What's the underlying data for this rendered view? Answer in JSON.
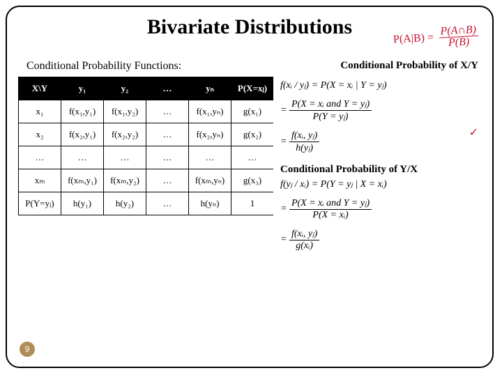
{
  "title": "Bivariate Distributions",
  "hand_annotation": {
    "lhs": "P(A|B) =",
    "num": "P(A∩B)",
    "den": "P(B)"
  },
  "subhead_left": "Conditional Probability Functions:",
  "subhead_right": "Conditional Probability of X/Y",
  "table": {
    "headers": [
      "X\\Y",
      "y₁",
      "y₂",
      "…",
      "yₙ",
      "P(X=xⱼ)"
    ],
    "rows": [
      [
        "x₁",
        "f(x₁,y₁)",
        "f(x₁,y₂)",
        "…",
        "f(x₁,yₙ)",
        "g(x₁)"
      ],
      [
        "x₂",
        "f(x₂,y₁)",
        "f(x₂,y₂)",
        "…",
        "f(x₂,yₙ)",
        "g(x₂)"
      ],
      [
        "…",
        "…",
        "…",
        "…",
        "…",
        "…"
      ],
      [
        "xₘ",
        "f(xₘ,y₁)",
        "f(xₘ,y₂)",
        "…",
        "f(xₘ,yₙ)",
        "g(x₃)"
      ],
      [
        "P(Y=yⱼ)",
        "h(y₁)",
        "h(y₂)",
        "…",
        "h(yₙ)",
        "1"
      ]
    ]
  },
  "eq_xy": {
    "line1_lhs": "f(xᵢ / yⱼ) = P(X = xᵢ | Y = yⱼ)",
    "frac1_num": "P(X = xᵢ and Y = yⱼ)",
    "frac1_den": "P(Y = yⱼ)",
    "frac2_num": "f(xᵢ, yⱼ)",
    "frac2_den": "h(yⱼ)"
  },
  "subhead2": "Conditional Probability of Y/X",
  "eq_yx": {
    "line1_lhs": "f(yⱼ / xᵢ) = P(Y = yⱼ | X = xᵢ)",
    "frac1_num": "P(X = xᵢ and Y = yⱼ)",
    "frac1_den": "P(X = xᵢ)",
    "frac2_num": "f(xᵢ, yⱼ)",
    "frac2_den": "g(xᵢ)"
  },
  "checkmark": "✓",
  "page_number": "9"
}
